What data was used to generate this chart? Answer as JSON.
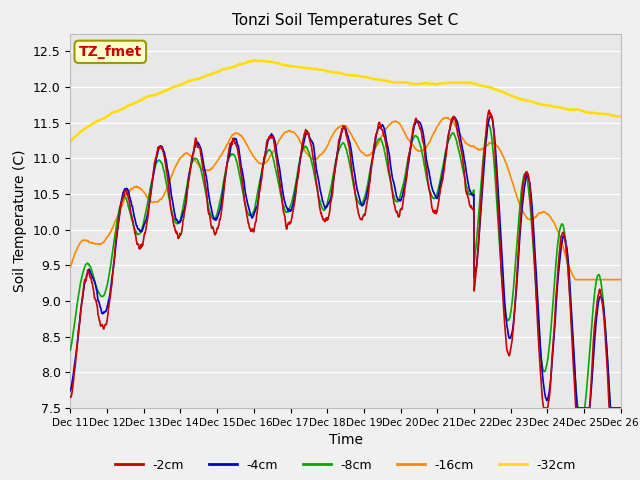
{
  "title": "Tonzi Soil Temperatures Set C",
  "xlabel": "Time",
  "ylabel": "Soil Temperature (C)",
  "ylim": [
    7.5,
    12.75
  ],
  "xlim": [
    0,
    15
  ],
  "annotation_text": "TZ_fmet",
  "annotation_color": "#cc0000",
  "annotation_bg": "#ffffcc",
  "bg_color": "#e8e8e8",
  "grid_color": "#ffffff",
  "series": {
    "-2cm": {
      "color": "#cc0000",
      "lw": 1.2
    },
    "-4cm": {
      "color": "#0000cc",
      "lw": 1.2
    },
    "-8cm": {
      "color": "#00aa00",
      "lw": 1.2
    },
    "-16cm": {
      "color": "#ff8800",
      "lw": 1.2
    },
    "-32cm": {
      "color": "#ffdd00",
      "lw": 1.8
    }
  },
  "xtick_labels": [
    "Dec 11",
    "Dec 12",
    "Dec 13",
    "Dec 14",
    "Dec 15",
    "Dec 16",
    "Dec 17",
    "Dec 18",
    "Dec 19",
    "Dec 20",
    "Dec 21",
    "Dec 22",
    "Dec 23",
    "Dec 24",
    "Dec 25",
    "Dec 26"
  ],
  "ytick_labels": [
    "7.5",
    "8.0",
    "8.5",
    "9.0",
    "9.5",
    "10.0",
    "10.5",
    "11.0",
    "11.5",
    "12.0",
    "12.5"
  ],
  "ytick_positions": [
    7.5,
    8.0,
    8.5,
    9.0,
    9.5,
    10.0,
    10.5,
    11.0,
    11.5,
    12.0,
    12.5
  ]
}
